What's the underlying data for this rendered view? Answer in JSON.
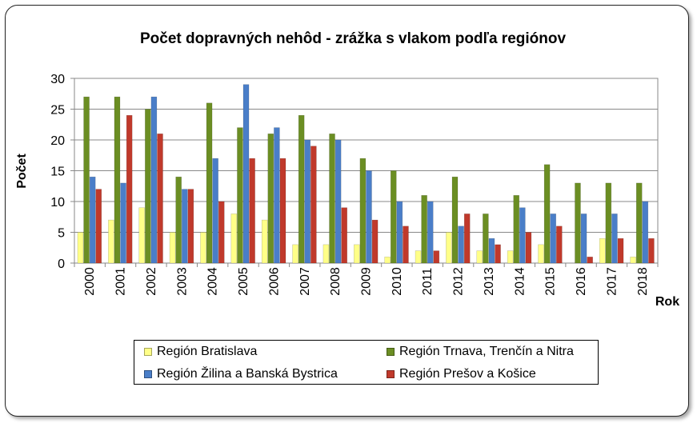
{
  "chart_data": {
    "type": "bar",
    "title": "Počet dopravných nehôd - zrážka s vlakom podľa regiónov",
    "xlabel": "Rok",
    "ylabel": "Počet",
    "ylim": [
      0,
      30
    ],
    "yticks": [
      0,
      5,
      10,
      15,
      20,
      25,
      30
    ],
    "grid": true,
    "legend_position": "bottom",
    "categories": [
      "2000",
      "2001",
      "2002",
      "2003",
      "2004",
      "2005",
      "2006",
      "2007",
      "2008",
      "2009",
      "2010",
      "2011",
      "2012",
      "2013",
      "2014",
      "2015",
      "2016",
      "2017",
      "2018"
    ],
    "series": [
      {
        "name": "Región Bratislava",
        "color": "#FFFF88",
        "values": [
          5,
          7,
          9,
          5,
          5,
          8,
          7,
          3,
          3,
          3,
          1,
          2,
          5,
          2,
          2,
          3,
          0,
          4,
          1
        ]
      },
      {
        "name": "Región Trnava, Trenčín a Nitra",
        "color": "#6B8E23",
        "values": [
          27,
          27,
          25,
          14,
          26,
          22,
          21,
          24,
          21,
          17,
          15,
          11,
          14,
          8,
          11,
          16,
          13,
          13,
          13
        ]
      },
      {
        "name": "Región Žilina a Banská Bystrica",
        "color": "#4A7EC8",
        "values": [
          14,
          13,
          27,
          12,
          17,
          29,
          22,
          20,
          20,
          15,
          10,
          10,
          6,
          4,
          9,
          8,
          8,
          8,
          10
        ]
      },
      {
        "name": "Región Prešov a Košice",
        "color": "#C0392B",
        "values": [
          12,
          24,
          21,
          12,
          10,
          17,
          17,
          19,
          9,
          7,
          6,
          2,
          8,
          3,
          5,
          6,
          1,
          4,
          4
        ]
      }
    ]
  }
}
